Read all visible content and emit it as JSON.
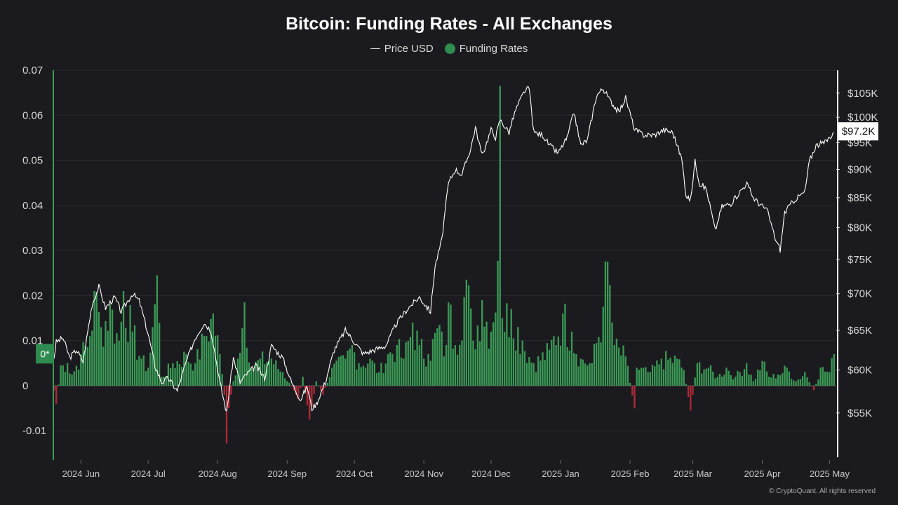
{
  "chart_data": {
    "type": "bar",
    "title": "Bitcoin: Funding Rates - All Exchanges",
    "legend": [
      {
        "name": "Price USD",
        "color": "#ffffff",
        "marker": "line"
      },
      {
        "name": "Funding Rates",
        "color": "#2f8b4f",
        "marker": "dot"
      }
    ],
    "colors": {
      "positive": "#3a9a55",
      "negative": "#b02a38",
      "price": "#ffffff",
      "background": "#1b1b1f",
      "grid": "#2a2a2f"
    },
    "x_ticks": [
      "2024 Jun",
      "2024 Jul",
      "2024 Aug",
      "2024 Sep",
      "2024 Oct",
      "2024 Nov",
      "2024 Dec",
      "2025 Jan",
      "2025 Feb",
      "2025 Mar",
      "2025 Apr",
      "2025 May"
    ],
    "x_range": [
      "2024-05-20",
      "2025-05-04"
    ],
    "y_left": {
      "ticks": [
        "0.07",
        "0.06",
        "0.05",
        "0.04",
        "0.03",
        "0.02",
        "0.01",
        "0",
        "-0.01"
      ],
      "range": [
        -0.0165,
        0.07
      ]
    },
    "y_right": {
      "ticks": [
        "$105K",
        "$100K",
        "$95K",
        "$90K",
        "$85K",
        "$80K",
        "$75K",
        "$70K",
        "$65K",
        "$60K",
        "$55K"
      ],
      "range": [
        50000,
        110000
      ]
    },
    "price_label": "$97.2K",
    "zero_marker_label": "0*",
    "grid": true,
    "series": [
      {
        "name": "Funding Rates",
        "type": "bar",
        "description": "daily funding rate (keyframes, interpolated between points)",
        "points": [
          [
            "2024-05-20",
            -0.001
          ],
          [
            "2024-05-21",
            -0.004
          ],
          [
            "2024-05-23",
            0.0045
          ],
          [
            "2024-05-26",
            0.005
          ],
          [
            "2024-05-28",
            0.0025
          ],
          [
            "2024-06-01",
            0.007
          ],
          [
            "2024-06-05",
            0.011
          ],
          [
            "2024-06-07",
            0.021
          ],
          [
            "2024-06-10",
            0.013
          ],
          [
            "2024-06-14",
            0.018
          ],
          [
            "2024-06-18",
            0.01
          ],
          [
            "2024-06-20",
            0.021
          ],
          [
            "2024-06-24",
            0.012
          ],
          [
            "2024-06-28",
            0.006
          ],
          [
            "2024-07-01",
            0.004
          ],
          [
            "2024-07-03",
            0.013
          ],
          [
            "2024-07-05",
            0.0245
          ],
          [
            "2024-07-07",
            0.002
          ],
          [
            "2024-07-12",
            0.005
          ],
          [
            "2024-07-18",
            0.007
          ],
          [
            "2024-07-22",
            0.005
          ],
          [
            "2024-07-26",
            0.011
          ],
          [
            "2024-07-30",
            0.016
          ],
          [
            "2024-08-02",
            0.007
          ],
          [
            "2024-08-04",
            -0.002
          ],
          [
            "2024-08-05",
            -0.0128
          ],
          [
            "2024-08-06",
            -0.005
          ],
          [
            "2024-08-08",
            0.001
          ],
          [
            "2024-08-10",
            0.006
          ],
          [
            "2024-08-13",
            0.0185
          ],
          [
            "2024-08-16",
            0.004
          ],
          [
            "2024-08-20",
            0.006
          ],
          [
            "2024-08-25",
            0.006
          ],
          [
            "2024-08-30",
            0.003
          ],
          [
            "2024-09-04",
            -0.001
          ],
          [
            "2024-09-06",
            -0.003
          ],
          [
            "2024-09-08",
            0.002
          ],
          [
            "2024-09-11",
            -0.0075
          ],
          [
            "2024-09-14",
            0.001
          ],
          [
            "2024-09-17",
            -0.002
          ],
          [
            "2024-09-21",
            0.004
          ],
          [
            "2024-09-27",
            0.006
          ],
          [
            "2024-09-30",
            0.009
          ],
          [
            "2024-10-03",
            0.005
          ],
          [
            "2024-10-08",
            0.006
          ],
          [
            "2024-10-12",
            0.003
          ],
          [
            "2024-10-16",
            0.007
          ],
          [
            "2024-10-20",
            0.009
          ],
          [
            "2024-10-23",
            0.006
          ],
          [
            "2024-10-27",
            0.014
          ],
          [
            "2024-10-30",
            0.009
          ],
          [
            "2024-11-03",
            0.007
          ],
          [
            "2024-11-08",
            0.0135
          ],
          [
            "2024-11-10",
            0.0065
          ],
          [
            "2024-11-12",
            0.0185
          ],
          [
            "2024-11-15",
            0.009
          ],
          [
            "2024-11-20",
            0.0235
          ],
          [
            "2024-11-23",
            0.01
          ],
          [
            "2024-11-27",
            0.019
          ],
          [
            "2024-12-01",
            0.012
          ],
          [
            "2024-12-04",
            0.0277
          ],
          [
            "2024-12-05",
            0.0665
          ],
          [
            "2024-12-06",
            0.015
          ],
          [
            "2024-12-10",
            0.017
          ],
          [
            "2024-12-15",
            0.01
          ],
          [
            "2024-12-20",
            0.005
          ],
          [
            "2024-12-27",
            0.008
          ],
          [
            "2025-01-02",
            0.016
          ],
          [
            "2025-01-06",
            0.012
          ],
          [
            "2025-01-10",
            0.006
          ],
          [
            "2025-01-15",
            0.005
          ],
          [
            "2025-01-20",
            0.0175
          ],
          [
            "2025-01-22",
            0.0275
          ],
          [
            "2025-01-25",
            0.009
          ],
          [
            "2025-01-30",
            0.0065
          ],
          [
            "2025-02-03",
            -0.005
          ],
          [
            "2025-02-04",
            0.004
          ],
          [
            "2025-02-10",
            0.003
          ],
          [
            "2025-02-15",
            0.006
          ],
          [
            "2025-02-22",
            0.006
          ],
          [
            "2025-02-25",
            0.0035
          ],
          [
            "2025-02-28",
            -0.0055
          ],
          [
            "2025-03-03",
            0.005
          ],
          [
            "2025-03-08",
            0.004
          ],
          [
            "2025-03-12",
            0.002
          ],
          [
            "2025-03-16",
            0.004
          ],
          [
            "2025-03-20",
            0.002
          ],
          [
            "2025-03-25",
            0.005
          ],
          [
            "2025-03-28",
            0.001
          ],
          [
            "2025-04-01",
            0.0055
          ],
          [
            "2025-04-04",
            0.002
          ],
          [
            "2025-04-08",
            0.0025
          ],
          [
            "2025-04-12",
            0.004
          ],
          [
            "2025-04-16",
            0.001
          ],
          [
            "2025-04-20",
            0.003
          ],
          [
            "2025-04-24",
            -0.001
          ],
          [
            "2025-04-27",
            0.004
          ],
          [
            "2025-05-01",
            0.003
          ],
          [
            "2025-05-03",
            0.007
          ]
        ]
      },
      {
        "name": "Price USD",
        "type": "line",
        "points": [
          [
            "2024-05-20",
            61500
          ],
          [
            "2024-05-21",
            63500
          ],
          [
            "2024-05-24",
            64000
          ],
          [
            "2024-05-27",
            61500
          ],
          [
            "2024-05-30",
            62500
          ],
          [
            "2024-06-02",
            61000
          ],
          [
            "2024-06-06",
            68500
          ],
          [
            "2024-06-09",
            71000
          ],
          [
            "2024-06-12",
            68000
          ],
          [
            "2024-06-16",
            69500
          ],
          [
            "2024-06-19",
            67500
          ],
          [
            "2024-06-24",
            70000
          ],
          [
            "2024-06-27",
            69000
          ],
          [
            "2024-07-01",
            64500
          ],
          [
            "2024-07-04",
            60500
          ],
          [
            "2024-07-07",
            58500
          ],
          [
            "2024-07-10",
            59000
          ],
          [
            "2024-07-14",
            57500
          ],
          [
            "2024-07-18",
            61000
          ],
          [
            "2024-07-22",
            64000
          ],
          [
            "2024-07-26",
            66000
          ],
          [
            "2024-07-29",
            65000
          ],
          [
            "2024-08-02",
            58500
          ],
          [
            "2024-08-05",
            55000
          ],
          [
            "2024-08-08",
            61500
          ],
          [
            "2024-08-11",
            58500
          ],
          [
            "2024-08-14",
            59500
          ],
          [
            "2024-08-18",
            60500
          ],
          [
            "2024-08-22",
            59000
          ],
          [
            "2024-08-25",
            63000
          ],
          [
            "2024-08-30",
            61500
          ],
          [
            "2024-09-03",
            58500
          ],
          [
            "2024-09-07",
            56500
          ],
          [
            "2024-09-10",
            58000
          ],
          [
            "2024-09-12",
            55500
          ],
          [
            "2024-09-14",
            56000
          ],
          [
            "2024-09-18",
            58500
          ],
          [
            "2024-09-22",
            62500
          ],
          [
            "2024-09-27",
            65000
          ],
          [
            "2024-10-01",
            63500
          ],
          [
            "2024-10-05",
            62000
          ],
          [
            "2024-10-10",
            62500
          ],
          [
            "2024-10-15",
            63000
          ],
          [
            "2024-10-20",
            66000
          ],
          [
            "2024-10-25",
            68000
          ],
          [
            "2024-10-30",
            69500
          ],
          [
            "2024-11-04",
            67500
          ],
          [
            "2024-11-06",
            74000
          ],
          [
            "2024-11-09",
            78000
          ],
          [
            "2024-11-12",
            87500
          ],
          [
            "2024-11-15",
            90000
          ],
          [
            "2024-11-18",
            89000
          ],
          [
            "2024-11-22",
            94000
          ],
          [
            "2024-11-24",
            98000
          ],
          [
            "2024-11-27",
            92500
          ],
          [
            "2024-12-01",
            97500
          ],
          [
            "2024-12-03",
            96000
          ],
          [
            "2024-12-05",
            99500
          ],
          [
            "2024-12-09",
            97000
          ],
          [
            "2024-12-12",
            101500
          ],
          [
            "2024-12-16",
            105500
          ],
          [
            "2024-12-18",
            106000
          ],
          [
            "2024-12-20",
            97000
          ],
          [
            "2024-12-24",
            96500
          ],
          [
            "2024-12-27",
            94500
          ],
          [
            "2024-12-31",
            93000
          ],
          [
            "2025-01-04",
            96000
          ],
          [
            "2025-01-07",
            101000
          ],
          [
            "2025-01-10",
            94500
          ],
          [
            "2025-01-13",
            95500
          ],
          [
            "2025-01-17",
            104500
          ],
          [
            "2025-01-20",
            106000
          ],
          [
            "2025-01-23",
            103500
          ],
          [
            "2025-01-27",
            101000
          ],
          [
            "2025-01-30",
            104000
          ],
          [
            "2025-02-03",
            97500
          ],
          [
            "2025-02-07",
            96500
          ],
          [
            "2025-02-12",
            96500
          ],
          [
            "2025-02-16",
            97500
          ],
          [
            "2025-02-20",
            97000
          ],
          [
            "2025-02-24",
            92000
          ],
          [
            "2025-02-26",
            85500
          ],
          [
            "2025-02-28",
            84500
          ],
          [
            "2025-03-02",
            91500
          ],
          [
            "2025-03-04",
            87500
          ],
          [
            "2025-03-07",
            86500
          ],
          [
            "2025-03-11",
            79500
          ],
          [
            "2025-03-14",
            83500
          ],
          [
            "2025-03-18",
            84000
          ],
          [
            "2025-03-21",
            85500
          ],
          [
            "2025-03-25",
            87500
          ],
          [
            "2025-03-28",
            85000
          ],
          [
            "2025-04-01",
            83500
          ],
          [
            "2025-04-03",
            83000
          ],
          [
            "2025-04-07",
            78000
          ],
          [
            "2025-04-09",
            76500
          ],
          [
            "2025-04-11",
            82500
          ],
          [
            "2025-04-15",
            84500
          ],
          [
            "2025-04-20",
            86000
          ],
          [
            "2025-04-22",
            91500
          ],
          [
            "2025-04-25",
            94500
          ],
          [
            "2025-04-29",
            95000
          ],
          [
            "2025-05-02",
            96500
          ],
          [
            "2025-05-03",
            97200
          ]
        ]
      }
    ]
  },
  "footer": {
    "copyright": "© CryptoQuant. All rights reserved"
  }
}
